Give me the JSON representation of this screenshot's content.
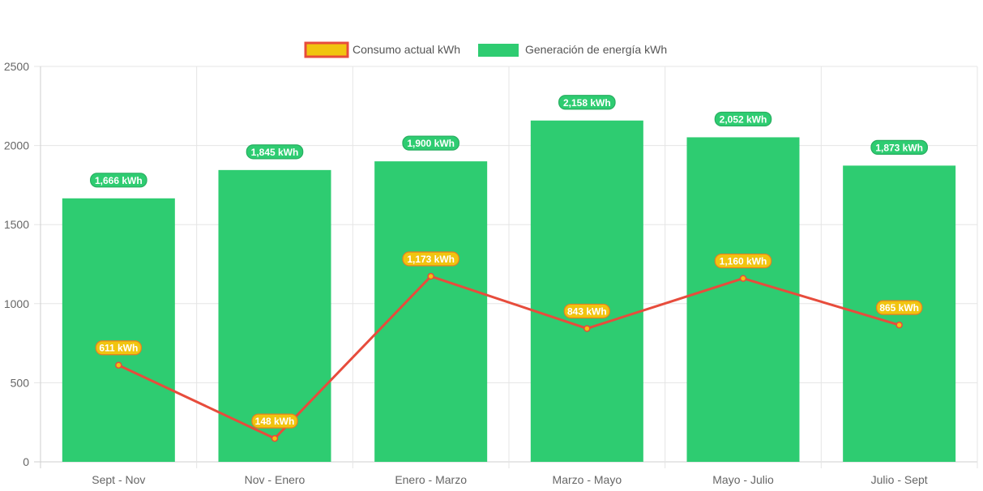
{
  "chart_data": {
    "type": "bar",
    "title": "",
    "xlabel": "",
    "ylabel": "",
    "categories": [
      "Sept - Nov",
      "Nov - Enero",
      "Enero - Marzo",
      "Marzo - Mayo",
      "Mayo - Julio",
      "Julio - Sept"
    ],
    "ylim": [
      0,
      2500
    ],
    "yticks": [
      0,
      500,
      1000,
      1500,
      2000,
      2500
    ],
    "grid": true,
    "legend_position": "top-center",
    "series": [
      {
        "name": "Consumo actual kWh",
        "type": "line",
        "values": [
          611,
          148,
          1173,
          843,
          1160,
          865
        ],
        "labels": [
          "611 kWh",
          "148 kWh",
          "1,173 kWh",
          "843 kWh",
          "1,160 kWh",
          "865 kWh"
        ],
        "color": "#e74c3c",
        "fill": "#f1c40f"
      },
      {
        "name": "Generación de energía kWh",
        "type": "bar",
        "values": [
          1666,
          1845,
          1900,
          2158,
          2052,
          1873
        ],
        "labels": [
          "1,666 kWh",
          "1,845 kWh",
          "1,900 kWh",
          "2,158 kWh",
          "2,052 kWh",
          "1,873 kWh"
        ],
        "color": "#2ecc71"
      }
    ]
  }
}
